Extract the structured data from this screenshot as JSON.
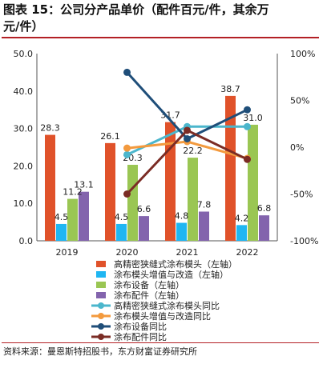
{
  "title": {
    "line1": "图表  15：公司分产品单价（配件百元/件，其余万",
    "line2": "元/件）"
  },
  "source": "资料来源：曼恩斯特招股书，东方财富证券研究所",
  "colors": {
    "accent": "#b32025",
    "bar_series": [
      "#e0522a",
      "#1fb6f2",
      "#9ac653",
      "#8364ad"
    ],
    "line_series": [
      "#4bb6cc",
      "#f39a3e",
      "#1f4e79",
      "#7b2c25"
    ]
  },
  "chart_data": {
    "type": "bar",
    "categories": [
      "2019",
      "2020",
      "2021",
      "2022"
    ],
    "ylim": [
      0,
      50
    ],
    "y_ticks": [
      "0.0",
      "10.0",
      "20.0",
      "30.0",
      "40.0",
      "50.0"
    ],
    "y2lim": [
      -100,
      100
    ],
    "y2_ticks": [
      "-100%",
      "-50%",
      "0%",
      "50%",
      "100%"
    ],
    "grid": false,
    "legend_position": "bottom",
    "series": [
      {
        "name": "高精密狭缝式涂布模头（左轴）",
        "values": [
          28.3,
          26.1,
          31.7,
          38.7
        ],
        "labels": [
          "28.3",
          "26.1",
          "31.7",
          "38.7"
        ]
      },
      {
        "name": "涂布模头增值与改造（左轴）",
        "values": [
          4.5,
          4.5,
          4.8,
          4.2
        ],
        "labels": [
          "4.5",
          "4.5",
          "4.8",
          "4.2"
        ]
      },
      {
        "name": "涂布设备（左轴）",
        "values": [
          11.2,
          20.3,
          22.2,
          31.0
        ],
        "labels": [
          "11.2",
          "20.3",
          "22.2",
          "31.0"
        ]
      },
      {
        "name": "涂布配件（左轴）",
        "values": [
          13.1,
          6.6,
          7.8,
          6.8
        ],
        "labels": [
          "13.1",
          "6.6",
          "7.8",
          "6.8"
        ]
      }
    ],
    "line_series": [
      {
        "name": "高精密狭缝式涂布模头同比",
        "values": [
          null,
          -8,
          22,
          22
        ]
      },
      {
        "name": "涂布模头增值与改造同比",
        "values": [
          null,
          -1,
          6,
          -12
        ]
      },
      {
        "name": "涂布设备同比",
        "values": [
          null,
          80,
          9,
          40
        ]
      },
      {
        "name": "涂布配件同比",
        "values": [
          null,
          -50,
          18,
          -13
        ]
      }
    ]
  }
}
